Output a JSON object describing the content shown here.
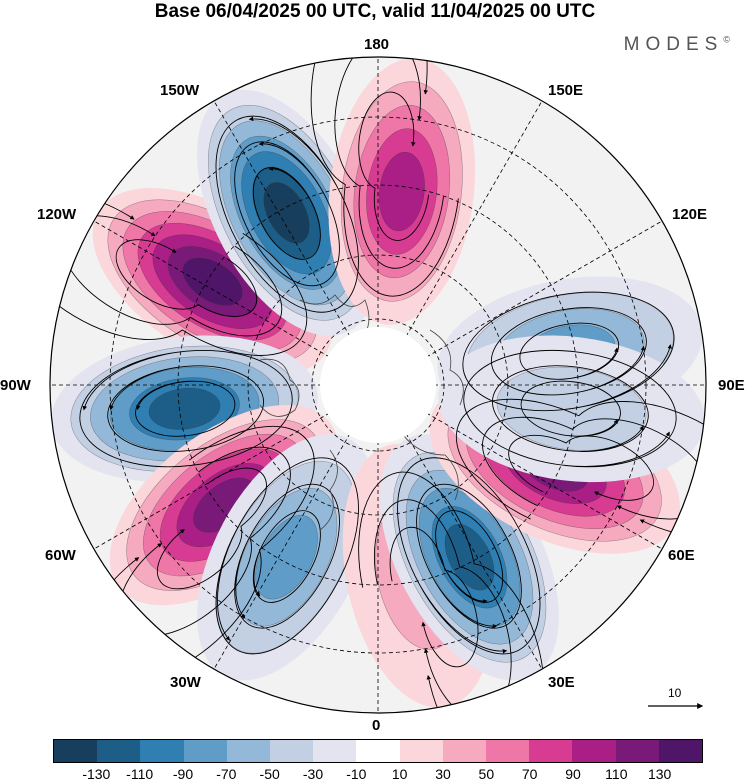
{
  "title": "Base 06/04/2025 00 UTC, valid 11/04/2025 00 UTC",
  "logo": "MODES",
  "logo_mark": "©",
  "longitude_labels": {
    "lon_180": "180",
    "lon_150E": "150E",
    "lon_120E": "120E",
    "lon_90E": "90E",
    "lon_60E": "60E",
    "lon_30E": "30E",
    "lon_0": "0",
    "lon_30W": "30W",
    "lon_60W": "60W",
    "lon_90W": "90W",
    "lon_120W": "120W",
    "lon_150W": "150W"
  },
  "vector_reference": "10",
  "colorbar": {
    "labels": [
      "-130",
      "-110",
      "-90",
      "-70",
      "-50",
      "-30",
      "-10",
      "10",
      "30",
      "50",
      "70",
      "90",
      "110",
      "130"
    ],
    "colors": [
      "#173e5c",
      "#1d5e88",
      "#2f7fb2",
      "#5f9dc8",
      "#94b9d8",
      "#c3d0e4",
      "#e4e4f0",
      "#ffffff",
      "#fbd6da",
      "#f6aac0",
      "#ee77a8",
      "#d83b92",
      "#a91f86",
      "#7a1a78",
      "#4e1568"
    ]
  },
  "anomaly_centers": [
    {
      "lon": -122,
      "sign": 1,
      "magnitude": 150
    },
    {
      "lon": -152,
      "sign": -1,
      "magnitude": 145
    },
    {
      "lon": -83,
      "sign": -1,
      "magnitude": 120
    },
    {
      "lon": -52,
      "sign": 1,
      "magnitude": 125
    },
    {
      "lon": -28,
      "sign": -1,
      "magnitude": 80
    },
    {
      "lon": 12,
      "sign": 1,
      "magnitude": 45
    },
    {
      "lon": 28,
      "sign": -1,
      "magnitude": 130
    },
    {
      "lon": 65,
      "sign": 1,
      "magnitude": 125
    },
    {
      "lon": 100,
      "sign": -1,
      "magnitude": 80
    },
    {
      "lon": 83,
      "sign": -1,
      "magnitude": 40
    },
    {
      "lon": 173,
      "sign": 1,
      "magnitude": 105
    }
  ]
}
